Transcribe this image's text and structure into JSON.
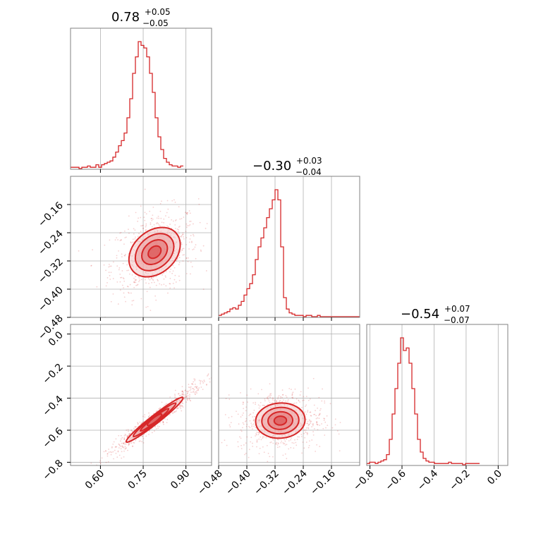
{
  "colors": {
    "series": "#d62728",
    "grid": "#b0b0b0",
    "frame": "#808080",
    "fill_light": "#f4c7c7",
    "fill_mid": "#eb9a9a"
  },
  "chart_data": {
    "type": "corner",
    "parameters": [
      {
        "title_value": "0.78",
        "title_plus": "+0.05",
        "title_minus": "−0.05",
        "range": [
          0.495,
          0.99
        ],
        "ticks": [
          0.6,
          0.75,
          0.9
        ],
        "tick_labels": [
          "0.60",
          "0.75",
          "0.90"
        ]
      },
      {
        "title_value": "−0.30",
        "title_plus": "+0.03",
        "title_minus": "−0.04",
        "range": [
          -0.48,
          -0.08
        ],
        "ticks": [
          -0.48,
          -0.4,
          -0.32,
          -0.24,
          -0.16
        ],
        "tick_labels": [
          "−0.48",
          "−0.40",
          "−0.32",
          "−0.24",
          "−0.16"
        ]
      },
      {
        "title_value": "−0.54",
        "title_plus": "+0.07",
        "title_minus": "−0.07",
        "range": [
          -0.82,
          0.06
        ],
        "ticks": [
          -0.8,
          -0.6,
          -0.4,
          -0.2,
          0.0
        ],
        "tick_labels": [
          "−0.8",
          "−0.6",
          "−0.4",
          "−0.2",
          "0.0"
        ]
      }
    ],
    "histograms": [
      {
        "param": 0,
        "bin_start": 0.495,
        "bin_width": 0.0099,
        "counts": [
          1,
          1,
          1,
          0,
          1,
          1,
          2,
          1,
          1,
          3,
          1,
          3,
          4,
          5,
          6,
          9,
          13,
          18,
          22,
          28,
          40,
          55,
          75,
          88,
          100,
          97,
          95,
          88,
          75,
          60,
          40,
          25,
          15,
          8,
          5,
          3,
          2,
          2,
          1,
          2
        ]
      },
      {
        "param": 1,
        "bin_start": -0.48,
        "bin_width": 0.008,
        "counts": [
          1,
          2,
          3,
          4,
          6,
          7,
          6,
          9,
          12,
          17,
          22,
          26,
          33,
          45,
          55,
          62,
          70,
          78,
          85,
          92,
          100,
          92,
          55,
          15,
          6,
          3,
          2,
          1,
          1,
          1,
          0,
          1,
          1,
          0,
          0,
          1,
          0,
          0,
          0,
          0,
          0,
          0,
          0,
          0,
          0,
          0,
          0,
          0,
          0,
          0
        ]
      },
      {
        "param": 2,
        "bin_start": -0.82,
        "bin_width": 0.0176,
        "counts": [
          1,
          2,
          2,
          1,
          2,
          3,
          4,
          8,
          20,
          40,
          60,
          80,
          100,
          90,
          92,
          80,
          60,
          40,
          20,
          10,
          5,
          3,
          2,
          2,
          1,
          1,
          1,
          1,
          1,
          2,
          1,
          1,
          1,
          1,
          0,
          1,
          1,
          1,
          1,
          1
        ]
      }
    ],
    "pairs": [
      {
        "x_param": 0,
        "y_param": 1,
        "center": [
          0.79,
          -0.295
        ],
        "spread": [
          0.045,
          0.035
        ],
        "rho": 0.3
      },
      {
        "x_param": 0,
        "y_param": 2,
        "center": [
          0.79,
          -0.535
        ],
        "spread": [
          0.05,
          0.07
        ],
        "rho": 0.97
      },
      {
        "x_param": 1,
        "y_param": 2,
        "center": [
          -0.305,
          -0.54
        ],
        "spread": [
          0.035,
          0.055
        ],
        "rho": 0.05
      }
    ],
    "grid": true
  }
}
